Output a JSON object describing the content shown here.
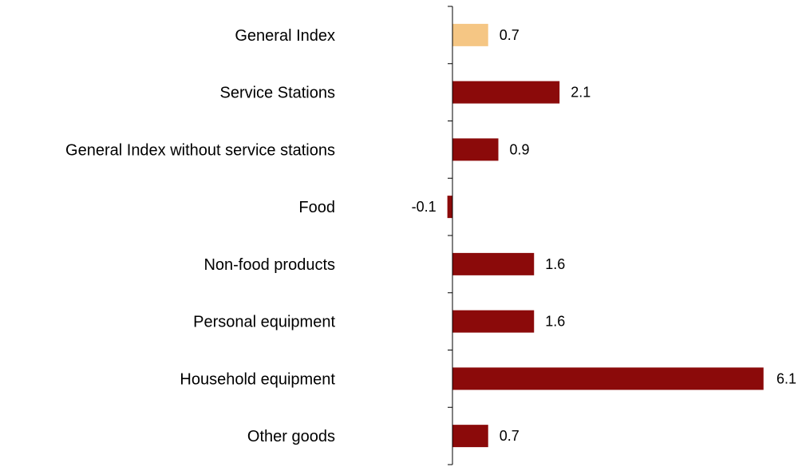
{
  "chart_data": {
    "type": "bar",
    "orientation": "horizontal",
    "categories": [
      "General Index",
      "Service Stations",
      "General Index without service stations",
      "Food",
      "Non-food products",
      "Personal equipment",
      "Household equipment",
      "Other goods"
    ],
    "values": [
      0.7,
      2.1,
      0.9,
      -0.1,
      1.6,
      1.6,
      6.1,
      0.7
    ],
    "value_labels": [
      "0.7",
      "2.1",
      "0.9",
      "-0.1",
      "1.6",
      "1.6",
      "6.1",
      "0.7"
    ],
    "highlight_index": 0,
    "colors": {
      "highlight": "#F5C684",
      "bar": "#8B0A0A",
      "axis": "#000000",
      "text": "#000000"
    },
    "grid": false,
    "legend": "none"
  }
}
